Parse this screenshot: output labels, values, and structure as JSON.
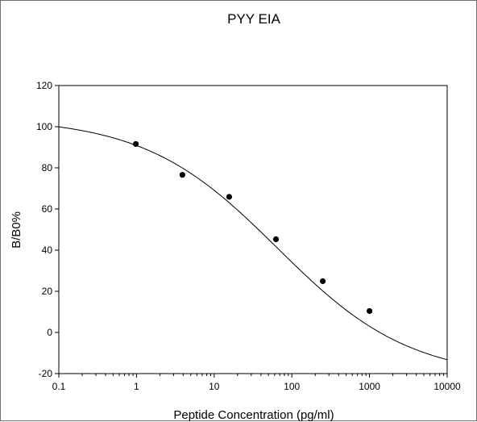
{
  "chart_data": {
    "type": "scatter",
    "title": "PYY EIA",
    "xlabel": "Peptide Concentration (pg/ml)",
    "ylabel": "B/B0%",
    "x_scale": "log",
    "xlim": [
      0.1,
      10000
    ],
    "ylim": [
      -20,
      120
    ],
    "grid": false,
    "x_ticks": [
      "0.1",
      "1",
      "10",
      "100",
      "1000",
      "10000"
    ],
    "y_ticks": [
      "-20",
      "0",
      "20",
      "40",
      "60",
      "80",
      "100",
      "120"
    ],
    "x_tick_values": [
      0.1,
      1,
      10,
      100,
      1000,
      10000
    ],
    "y_tick_values": [
      -20,
      0,
      20,
      40,
      60,
      80,
      100,
      120
    ],
    "series": [
      {
        "x": [
          0.98,
          3.9,
          15.6,
          62.5,
          250,
          1000
        ],
        "y": [
          91.6,
          76.6,
          65.9,
          45.3,
          24.9,
          10.4
        ]
      }
    ],
    "fit_curve": {
      "type": "4PL",
      "top": 104.5,
      "bottom": -22.4,
      "ec50": 65,
      "hill": 0.507
    }
  }
}
